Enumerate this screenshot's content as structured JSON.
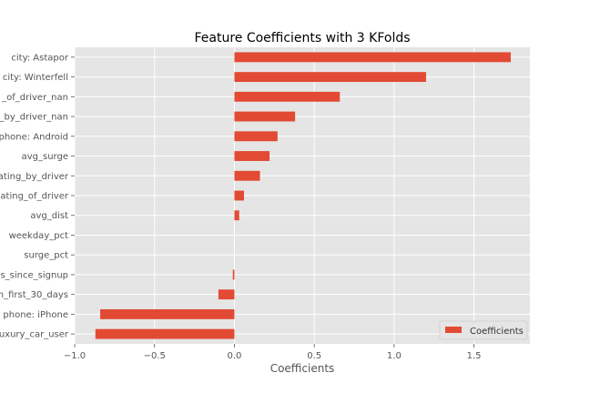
{
  "chart_data": {
    "type": "bar",
    "orientation": "horizontal",
    "title": "Feature Coefficients with 3 KFolds",
    "xlabel": "Coefficients",
    "ylabel": "",
    "xlim": [
      -1.0,
      1.85
    ],
    "xticks": [
      -1.0,
      -0.5,
      0.0,
      0.5,
      1.0,
      1.5
    ],
    "xtick_labels": [
      "−1.0",
      "−0.5",
      "0.0",
      "0.5",
      "1.0",
      "1.5"
    ],
    "categories": [
      "city: Astapor",
      "city: Winterfell",
      "_of_driver_nan",
      "_by_driver_nan",
      "phone: Android",
      "avg_surge",
      "ating_by_driver",
      "ating_of_driver",
      "avg_dist",
      "weekday_pct",
      "surge_pct",
      "s_since_signup",
      "n_first_30_days",
      "phone: iPhone",
      "uxury_car_user"
    ],
    "series": [
      {
        "name": "Coefficients",
        "values": [
          1.73,
          1.2,
          0.66,
          0.38,
          0.27,
          0.22,
          0.16,
          0.06,
          0.03,
          0.0,
          0.0,
          -0.01,
          -0.1,
          -0.84,
          -0.87
        ]
      }
    ],
    "grid": true,
    "legend_position": "lower-right",
    "colors": {
      "bar": "#E24A33",
      "plot_bg": "#E5E5E5",
      "grid": "#FFFFFF"
    }
  }
}
